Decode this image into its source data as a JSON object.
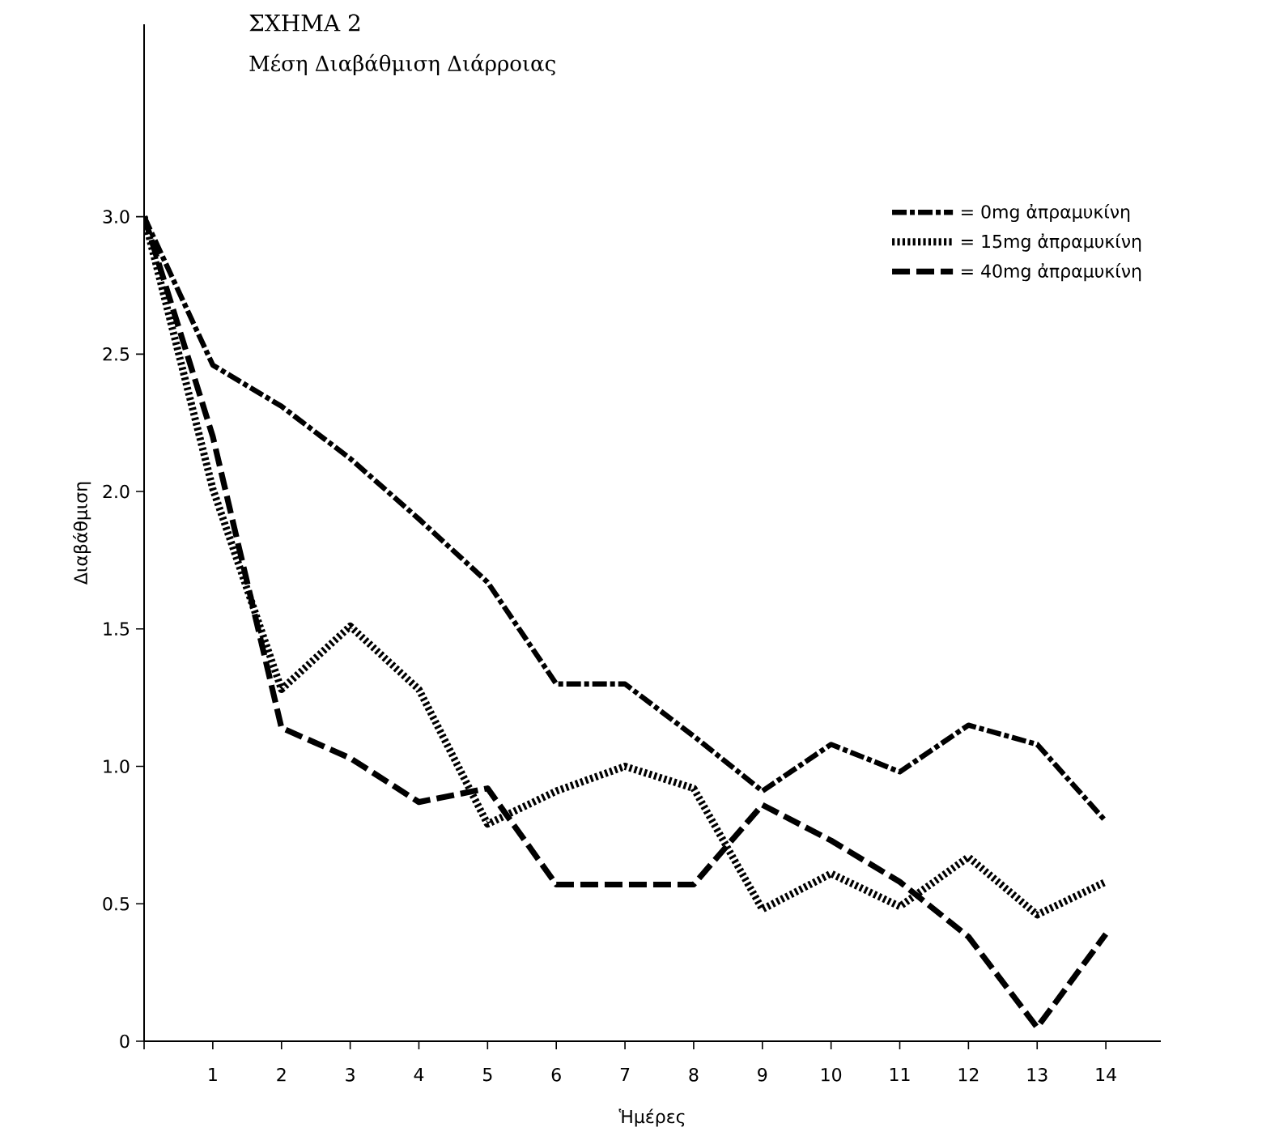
{
  "chart_data": {
    "type": "line",
    "title": "ΣΧΗΜΑ 2",
    "subtitle": "Μέση Διαβάθμιση Διάρροιας",
    "xlabel": "Ἡμέρες",
    "ylabel": "Διαβάθμιση",
    "x": [
      0,
      1,
      2,
      3,
      4,
      5,
      6,
      7,
      8,
      9,
      10,
      11,
      12,
      13,
      14
    ],
    "xlim": [
      0,
      14.8
    ],
    "xticks": [
      {
        "value": 0,
        "label": null
      },
      1,
      2,
      3,
      4,
      5,
      6,
      7,
      8,
      9,
      10,
      11,
      12,
      13,
      14
    ],
    "ylim": [
      0,
      3.7
    ],
    "yticks": [
      0,
      {
        "value": 0.5,
        "label": "0.5"
      },
      {
        "value": 1,
        "label": "1.0"
      },
      {
        "value": 1.5,
        "label": "1.5"
      },
      {
        "value": 2,
        "label": "2.0"
      },
      {
        "value": 2.5,
        "label": "2.5"
      },
      {
        "value": 3,
        "label": "3.0"
      }
    ],
    "grid": false,
    "legend": "top right",
    "marker": "none",
    "series": [
      {
        "name": "= 0mg ἀπραμυκίνη",
        "color": "#000000",
        "line_style": "dashed",
        "values": [
          3.0,
          2.46,
          2.31,
          2.12,
          1.9,
          1.67,
          1.3,
          1.3,
          1.11,
          0.91,
          1.08,
          0.98,
          1.15,
          1.08,
          0.8
        ]
      },
      {
        "name": "= 15mg ἀπραμυκίνη",
        "color": "#000000",
        "line_style": "dotted",
        "values": [
          3.0,
          2.01,
          1.28,
          1.51,
          1.28,
          0.79,
          0.91,
          1.0,
          0.92,
          0.48,
          0.61,
          0.49,
          0.67,
          0.46,
          0.58
        ]
      },
      {
        "name": "= 40mg ἀπραμυκίνη",
        "color": "#000000",
        "line_style": "dashed",
        "values": [
          3.0,
          2.2,
          1.14,
          1.03,
          0.87,
          0.92,
          0.57,
          0.57,
          0.57,
          0.86,
          0.73,
          0.58,
          0.38,
          0.05,
          0.39
        ]
      }
    ]
  }
}
